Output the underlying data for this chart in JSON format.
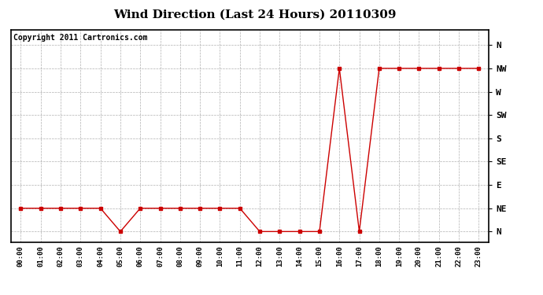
{
  "title": "Wind Direction (Last 24 Hours) 20110309",
  "copyright": "Copyright 2011 Cartronics.com",
  "hours": [
    "00:00",
    "01:00",
    "02:00",
    "03:00",
    "04:00",
    "05:00",
    "06:00",
    "07:00",
    "08:00",
    "09:00",
    "10:00",
    "11:00",
    "12:00",
    "13:00",
    "14:00",
    "15:00",
    "16:00",
    "17:00",
    "18:00",
    "19:00",
    "20:00",
    "21:00",
    "22:00",
    "23:00"
  ],
  "values": [
    45,
    45,
    45,
    45,
    45,
    0,
    45,
    45,
    45,
    45,
    45,
    45,
    0,
    0,
    0,
    0,
    315,
    0,
    315,
    315,
    315,
    315,
    315,
    315
  ],
  "yticks": [
    360,
    315,
    270,
    225,
    180,
    135,
    90,
    45,
    0
  ],
  "ylabels": [
    "N",
    "NW",
    "W",
    "SW",
    "S",
    "SE",
    "E",
    "NE",
    "N"
  ],
  "line_color": "#cc0000",
  "marker": "s",
  "marker_size": 3,
  "bg_color": "#ffffff",
  "grid_color": "#b0b0b0",
  "title_fontsize": 11,
  "copyright_fontsize": 7
}
